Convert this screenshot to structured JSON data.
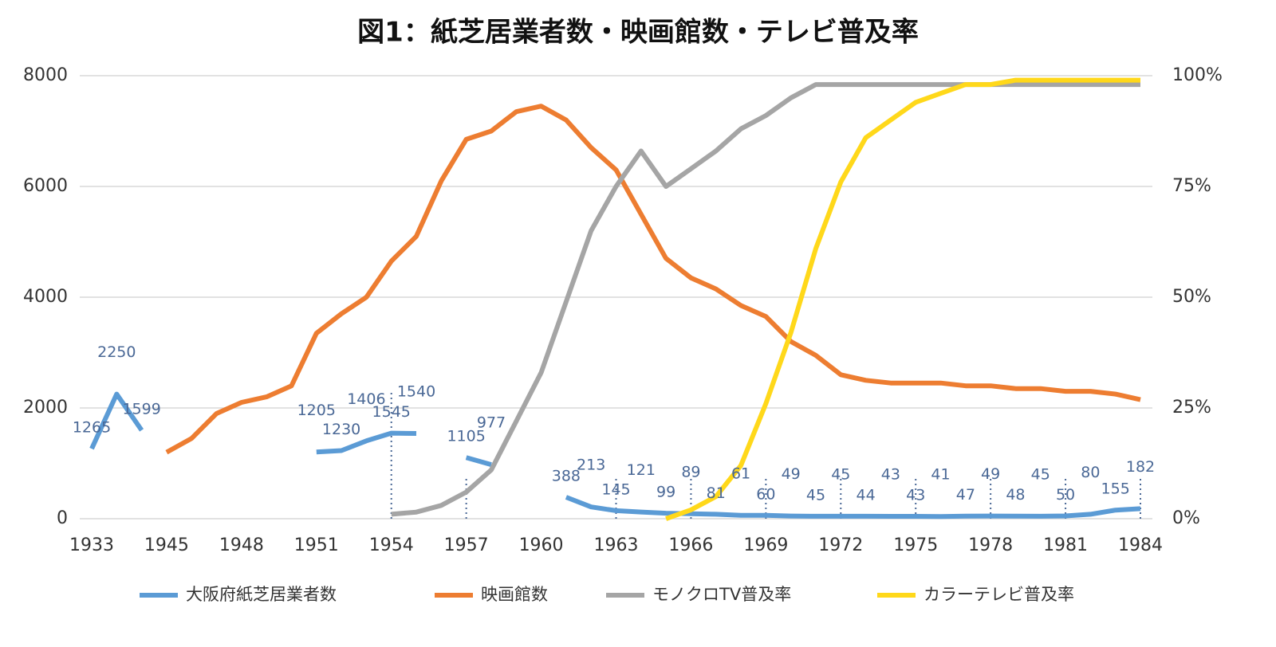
{
  "chart_data": {
    "type": "line",
    "title": "図1：紙芝居業者数・映画館数・テレビ普及率",
    "categories": [
      "1933",
      null,
      null,
      "1945",
      null,
      null,
      "1948",
      null,
      null,
      "1951",
      null,
      null,
      "1954",
      null,
      null,
      "1957",
      null,
      null,
      "1960",
      null,
      null,
      "1963",
      null,
      null,
      "1966",
      null,
      null,
      "1969",
      null,
      null,
      "1972",
      null,
      null,
      "1975",
      null,
      null,
      "1978",
      null,
      null,
      "1981",
      null,
      null,
      "1984"
    ],
    "ylim": [
      0,
      8000
    ],
    "yticks": [
      0,
      2000,
      4000,
      6000,
      8000
    ],
    "y2lim": [
      0,
      100
    ],
    "y2ticks": [
      {
        "value": 0,
        "label": "0%"
      },
      {
        "value": 25,
        "label": "25%"
      },
      {
        "value": 50,
        "label": "50%"
      },
      {
        "value": 75,
        "label": "75%"
      },
      {
        "value": 100,
        "label": "100%"
      }
    ],
    "grid": true,
    "legend": "bottom",
    "series": [
      {
        "name": "大阪府紙芝居業者数",
        "color": "#5b9bd5",
        "data_labels": true,
        "values": [
          1265,
          2250,
          1599,
          null,
          null,
          null,
          null,
          null,
          null,
          1205,
          1230,
          1406,
          1545,
          1540,
          null,
          1105,
          977,
          null,
          null,
          388,
          213,
          145,
          121,
          99,
          89,
          81,
          61,
          60,
          49,
          45,
          45,
          44,
          43,
          43,
          41,
          47,
          49,
          48,
          45,
          50,
          80,
          155,
          182
        ]
      },
      {
        "name": "映画館数",
        "color": "#ed7d31",
        "values": [
          null,
          null,
          null,
          1200,
          1450,
          1900,
          2100,
          2200,
          2400,
          3350,
          3700,
          4000,
          4650,
          5100,
          6100,
          6850,
          7000,
          7350,
          7450,
          7200,
          6700,
          6300,
          5500,
          4700,
          4350,
          4150,
          3850,
          3650,
          3200,
          2950,
          2600,
          2500,
          2450,
          2450,
          2450,
          2400,
          2400,
          2350,
          2350,
          2300,
          2300,
          2250,
          2150
        ]
      },
      {
        "name": "モノクロTV普及率",
        "color": "#a5a5a5",
        "axis": "y2",
        "values": [
          null,
          null,
          null,
          null,
          null,
          null,
          null,
          null,
          null,
          null,
          null,
          null,
          1,
          1.5,
          3,
          6,
          11,
          22,
          33,
          49,
          65,
          75,
          83,
          75,
          79,
          83,
          88,
          91,
          95,
          98,
          98,
          98,
          98,
          98,
          98,
          98,
          98,
          98,
          98,
          98,
          98,
          98,
          98
        ]
      },
      {
        "name": "カラーテレビ普及率",
        "color": "#ffd81a",
        "axis": "y2",
        "values": [
          null,
          null,
          null,
          null,
          null,
          null,
          null,
          null,
          null,
          null,
          null,
          null,
          null,
          null,
          null,
          null,
          null,
          null,
          null,
          null,
          null,
          null,
          null,
          0,
          2,
          5,
          12,
          26,
          42,
          61,
          76,
          86,
          90,
          94,
          96,
          98,
          98,
          99,
          99,
          99,
          99,
          99,
          99
        ]
      }
    ]
  }
}
